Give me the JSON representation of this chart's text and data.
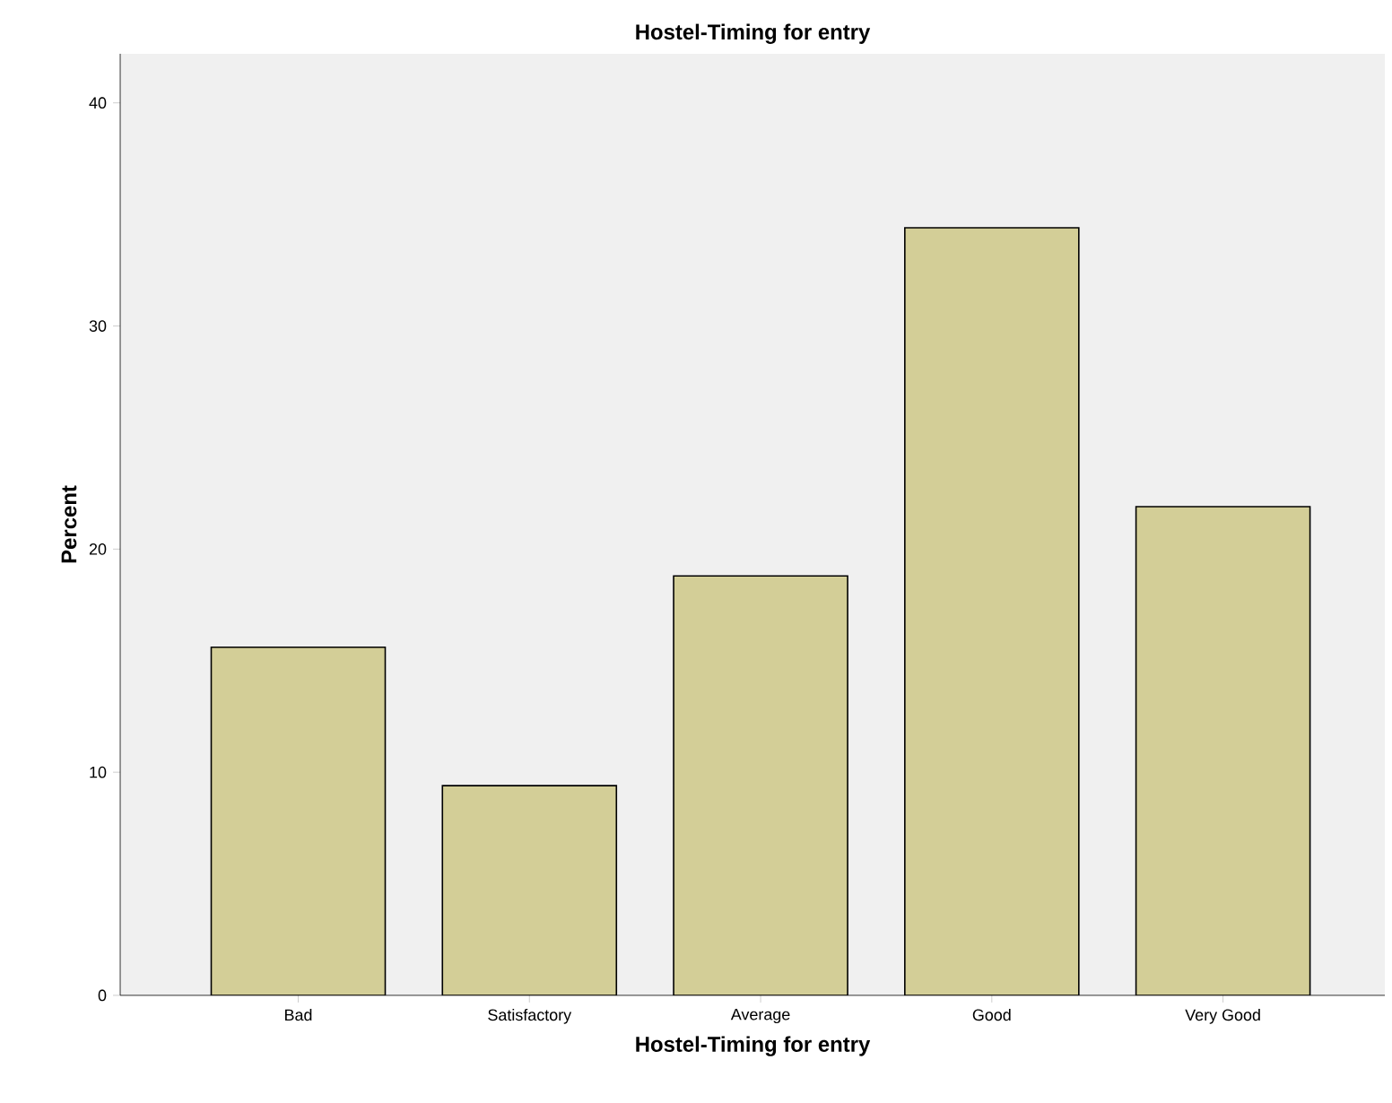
{
  "chart_data": {
    "type": "bar",
    "title": "Hostel-Timing for entry",
    "xlabel": "Hostel-Timing for entry",
    "ylabel": "Percent",
    "categories": [
      "Bad",
      "Satisfactory",
      "Average",
      "Good",
      "Very Good"
    ],
    "values": [
      15.6,
      9.4,
      18.8,
      34.4,
      21.9
    ],
    "color": "#d3ce97",
    "ylim": [
      0,
      42.2
    ],
    "yticks": [
      0,
      10,
      20,
      30,
      40
    ],
    "grid": false
  }
}
